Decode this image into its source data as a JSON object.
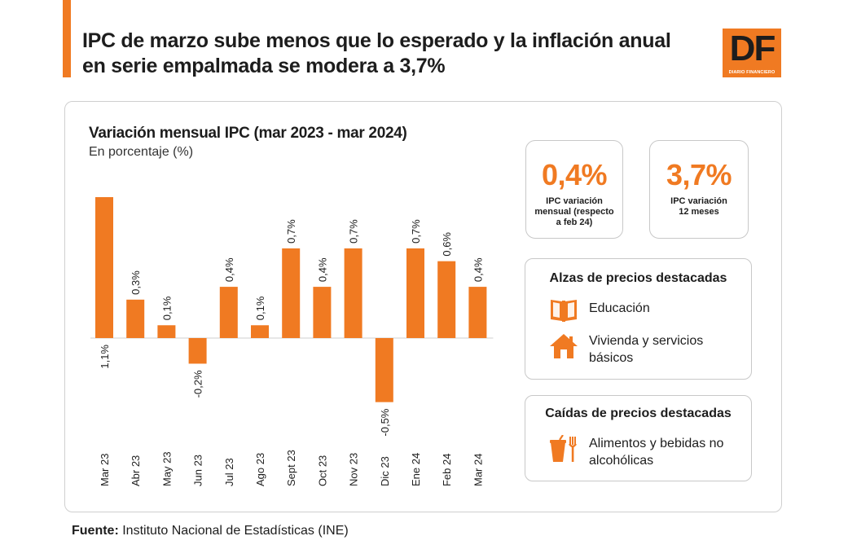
{
  "headline": "IPC de marzo sube menos que lo esperado y la inflación anual en serie empalmada se modera a 3,7%",
  "logo": {
    "letters": "DF",
    "subtitle": "DIARIO FINANCIERO"
  },
  "colors": {
    "accent": "#f07a22",
    "text": "#1d1d1d",
    "border": "#c8c8c8"
  },
  "chart_title": "Variación mensual IPC (mar 2023 - mar 2024)",
  "chart_subtitle": "En porcentaje (%)",
  "chart_data": {
    "type": "bar",
    "title": "Variación mensual IPC (mar 2023 - mar 2024)",
    "ylabel": "En porcentaje (%)",
    "categories": [
      "Mar 23",
      "Abr 23",
      "May 23",
      "Jun 23",
      "Jul 23",
      "Ago 23",
      "Sept 23",
      "Oct 23",
      "Nov 23",
      "Dic 23",
      "Ene 24",
      "Feb 24",
      "Mar 24"
    ],
    "values": [
      1.1,
      0.3,
      0.1,
      -0.2,
      0.4,
      0.1,
      0.7,
      0.4,
      0.7,
      -0.5,
      0.7,
      0.6,
      0.4
    ],
    "labels": [
      "1,1%",
      "0,3%",
      "0,1%",
      "-0,2%",
      "0,4%",
      "0,1%",
      "0,7%",
      "0,4%",
      "0,7%",
      "-0,5%",
      "0,7%",
      "0,6%",
      "0,4%"
    ],
    "ylim": [
      -0.5,
      1.1
    ],
    "grid": false
  },
  "kpis": [
    {
      "value": "0,4%",
      "label": "IPC variación mensual (respecto a feb 24)"
    },
    {
      "value": "3,7%",
      "label": "IPC variación 12 meses"
    }
  ],
  "rises": {
    "title": "Alzas de precios destacadas",
    "items": [
      {
        "icon": "book-icon",
        "label": "Educación"
      },
      {
        "icon": "house-icon",
        "label": "Vivienda y servicios básicos"
      }
    ]
  },
  "falls": {
    "title": "Caídas de precios destacadas",
    "items": [
      {
        "icon": "food-drink-icon",
        "label": "Alimentos y bebidas no alcohólicas"
      }
    ]
  },
  "source": {
    "label": "Fuente:",
    "text": "Instituto Nacional de Estadísticas (INE)"
  }
}
